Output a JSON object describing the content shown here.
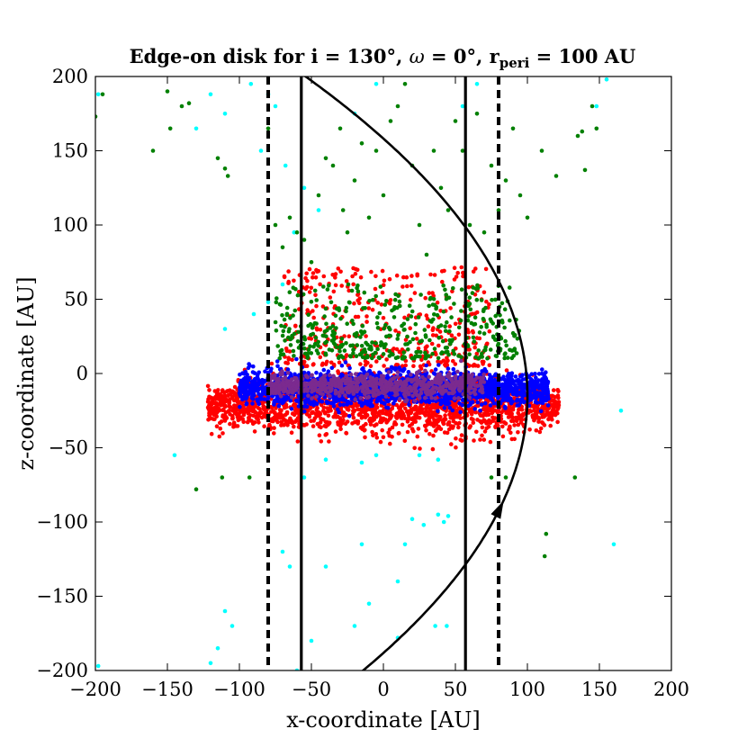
{
  "chart_data": {
    "type": "scatter",
    "title": {
      "prefix": "Edge-on disk for i = 130°, ",
      "omega_symbol": "ω",
      "omega_rest": " = 0°, r",
      "r_subscript": "peri",
      "suffix": " = 100 AU"
    },
    "xlabel": "x-coordinate [AU]",
    "ylabel": "z-coordinate [AU]",
    "xlim": [
      -200,
      200
    ],
    "ylim": [
      -200,
      200
    ],
    "xticks": [
      -200,
      -150,
      -100,
      -50,
      0,
      50,
      100,
      150,
      200
    ],
    "yticks": [
      -200,
      -150,
      -100,
      -50,
      0,
      50,
      100,
      150,
      200
    ],
    "xtick_labels": [
      "−200",
      "−150",
      "−100",
      "−50",
      "0",
      "50",
      "100",
      "150",
      "200"
    ],
    "ytick_labels": [
      "−200",
      "−150",
      "−100",
      "−50",
      "0",
      "50",
      "100",
      "150",
      "200"
    ],
    "grid": false,
    "series": [
      {
        "name": "cyan particles",
        "color": "#00ffff",
        "points": [
          [
            -198,
            188
          ],
          [
            -198,
            -197
          ],
          [
            -120,
            188
          ],
          [
            -92,
            195
          ],
          [
            -80,
            188
          ],
          [
            -75,
            180
          ],
          [
            -110,
            175
          ],
          [
            -130,
            165
          ],
          [
            -85,
            150
          ],
          [
            -68,
            140
          ],
          [
            -55,
            125
          ],
          [
            -45,
            110
          ],
          [
            -62,
            95
          ],
          [
            -70,
            60
          ],
          [
            -80,
            48
          ],
          [
            -90,
            40
          ],
          [
            -110,
            30
          ],
          [
            -145,
            -55
          ],
          [
            -80,
            -65
          ],
          [
            -55,
            -70
          ],
          [
            -40,
            -58
          ],
          [
            -15,
            -60
          ],
          [
            -5,
            -55
          ],
          [
            25,
            -55
          ],
          [
            38,
            -58
          ],
          [
            -110,
            -160
          ],
          [
            -105,
            -170
          ],
          [
            -115,
            -185
          ],
          [
            -120,
            -195
          ],
          [
            -70,
            -120
          ],
          [
            -65,
            -130
          ],
          [
            -40,
            -130
          ],
          [
            -20,
            -170
          ],
          [
            -50,
            -180
          ],
          [
            -10,
            -155
          ],
          [
            10,
            -140
          ],
          [
            15,
            -115
          ],
          [
            -15,
            -115
          ],
          [
            10,
            -178
          ],
          [
            20,
            -98
          ],
          [
            28,
            -102
          ],
          [
            38,
            -95
          ],
          [
            42,
            -100
          ],
          [
            45,
            -96
          ],
          [
            36,
            -170
          ],
          [
            44,
            -170
          ],
          [
            65,
            195
          ],
          [
            55,
            180
          ],
          [
            -5,
            195
          ],
          [
            -20,
            175
          ],
          [
            160,
            -115
          ],
          [
            165,
            -25
          ],
          [
            155,
            198
          ],
          [
            148,
            180
          ],
          [
            -60,
            -200
          ]
        ]
      },
      {
        "name": "green particles",
        "color": "#008000",
        "points": [
          [
            -195,
            188
          ],
          [
            -200,
            173
          ],
          [
            -160,
            150
          ],
          [
            -150,
            190
          ],
          [
            -148,
            165
          ],
          [
            -140,
            180
          ],
          [
            -135,
            182
          ],
          [
            -115,
            145
          ],
          [
            -110,
            138
          ],
          [
            -108,
            133
          ],
          [
            -130,
            -78
          ],
          [
            -112,
            -70
          ],
          [
            -93,
            -70
          ],
          [
            -80,
            165
          ],
          [
            -75,
            100
          ],
          [
            -70,
            85
          ],
          [
            -65,
            105
          ],
          [
            -60,
            95
          ],
          [
            -55,
            90
          ],
          [
            -50,
            75
          ],
          [
            -45,
            120
          ],
          [
            -40,
            145
          ],
          [
            -35,
            140
          ],
          [
            -30,
            165
          ],
          [
            -28,
            110
          ],
          [
            -25,
            95
          ],
          [
            -20,
            130
          ],
          [
            -15,
            155
          ],
          [
            -10,
            105
          ],
          [
            -5,
            150
          ],
          [
            0,
            120
          ],
          [
            5,
            170
          ],
          [
            10,
            180
          ],
          [
            15,
            195
          ],
          [
            20,
            140
          ],
          [
            25,
            100
          ],
          [
            30,
            80
          ],
          [
            35,
            150
          ],
          [
            40,
            125
          ],
          [
            45,
            110
          ],
          [
            50,
            170
          ],
          [
            55,
            150
          ],
          [
            60,
            100
          ],
          [
            65,
            175
          ],
          [
            70,
            95
          ],
          [
            75,
            140
          ],
          [
            80,
            110
          ],
          [
            85,
            130
          ],
          [
            90,
            165
          ],
          [
            95,
            120
          ],
          [
            100,
            105
          ],
          [
            110,
            150
          ],
          [
            120,
            133
          ],
          [
            135,
            160
          ],
          [
            138,
            163
          ],
          [
            140,
            137
          ],
          [
            145,
            180
          ],
          [
            148,
            165
          ],
          [
            75,
            -70
          ],
          [
            85,
            -70
          ],
          [
            112,
            -123
          ],
          [
            113,
            -108
          ],
          [
            133,
            -70
          ]
        ]
      },
      {
        "name": "red particles",
        "color": "#ff0000",
        "points": []
      },
      {
        "name": "blue particles",
        "color": "#0000ff",
        "points": []
      }
    ],
    "red_band": {
      "x_range": [
        -122,
        122
      ],
      "z_center": -22,
      "z_spread": 18,
      "count": 1900
    },
    "red_upper_cloud": {
      "x_range": [
        -70,
        75
      ],
      "z_range": [
        5,
        72
      ],
      "count": 380
    },
    "green_mid_cloud": {
      "x_range": [
        -75,
        95
      ],
      "z_range": [
        10,
        60
      ],
      "count": 420
    },
    "blue_band": {
      "x_range": [
        -100,
        115
      ],
      "z_center": -10,
      "z_spread": 10,
      "count": 1900
    },
    "purple_core": {
      "x_range": [
        -80,
        70
      ],
      "z_center": -8,
      "z_spread": 7,
      "count": 700,
      "color": "#7b2a8f"
    },
    "lines": [
      {
        "name": "solid line left",
        "x": -57,
        "style": "solid"
      },
      {
        "name": "solid line right",
        "x": 57,
        "style": "solid"
      },
      {
        "name": "dashed line left",
        "x": -80,
        "style": "dashed"
      },
      {
        "name": "dashed line right",
        "x": 80,
        "style": "dashed"
      }
    ],
    "orbit": {
      "name": "perihelion parabola",
      "type": "parabola",
      "x_vertex": 100,
      "z_vertex": -15,
      "z_range": [
        -205,
        205
      ],
      "curvature_k": 300,
      "arrow_at_z": -92
    }
  }
}
